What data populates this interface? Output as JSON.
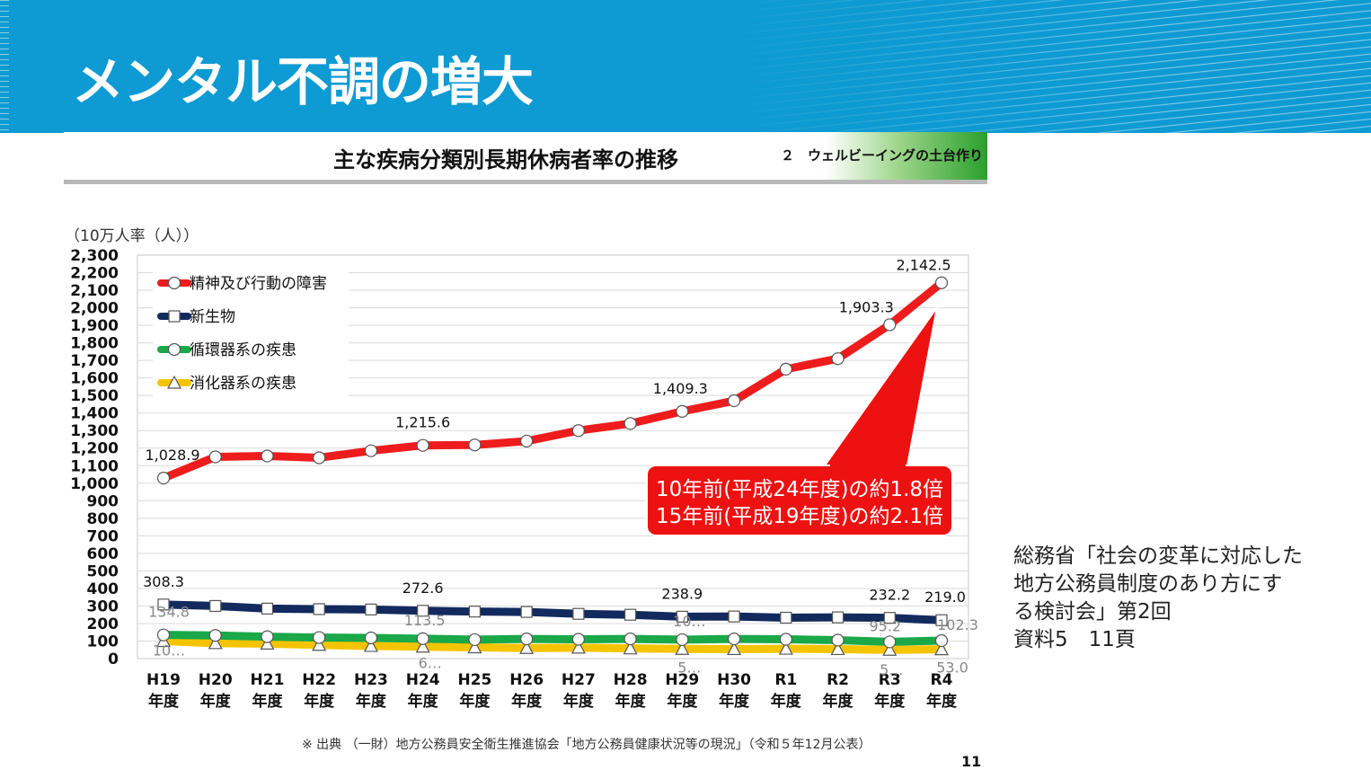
{
  "page": {
    "title": "メンタル不調の増大",
    "header_title": "主な疾病分類別長期休病者率の推移",
    "header_tag": "２　ウェルビーイングの土台作り",
    "side_note": [
      "総務省「社会の変革に対応した",
      "地方公務員制度のあり方にす",
      "る検討会」第2回",
      "資料5　11頁"
    ],
    "source": "※ 出典 （一財）地方公務員安全衛生推進協会「地方公務員健康状況等の現況」（令和５年12月公表）",
    "page_number": "11"
  },
  "chart_data": {
    "type": "line",
    "ylabel": "（10万人率（人））",
    "ylim": [
      0,
      2300
    ],
    "ytick_step": 100,
    "grid": true,
    "legend_position": "top-left",
    "categories": [
      [
        "H19",
        "年度"
      ],
      [
        "H20",
        "年度"
      ],
      [
        "H21",
        "年度"
      ],
      [
        "H22",
        "年度"
      ],
      [
        "H23",
        "年度"
      ],
      [
        "H24",
        "年度"
      ],
      [
        "H25",
        "年度"
      ],
      [
        "H26",
        "年度"
      ],
      [
        "H27",
        "年度"
      ],
      [
        "H28",
        "年度"
      ],
      [
        "H29",
        "年度"
      ],
      [
        "H30",
        "年度"
      ],
      [
        "R1",
        "年度"
      ],
      [
        "R2",
        "年度"
      ],
      [
        "R3",
        "年度"
      ],
      [
        "R4",
        "年度"
      ]
    ],
    "series": [
      {
        "name": "精神及び行動の障害",
        "color": "#ee1c1c",
        "marker": "circle",
        "values": [
          1028.9,
          1150,
          1155,
          1145,
          1185,
          1215.6,
          1218,
          1240,
          1300,
          1340,
          1409.3,
          1470,
          1650,
          1710,
          1903.3,
          2142.5
        ],
        "labels": {
          "0": "1,028.9",
          "5": "1,215.6",
          "10": "1,409.3",
          "14": "1,903.3",
          "15": "2,142.5"
        }
      },
      {
        "name": "新生物",
        "color": "#122a5e",
        "marker": "square",
        "values": [
          308.3,
          300,
          285,
          282,
          280,
          272.6,
          268,
          266,
          255,
          250,
          238.9,
          240,
          233,
          235,
          232.2,
          219.0
        ],
        "labels": {
          "0": "308.3",
          "5": "272.6",
          "10": "238.9",
          "14": "232.2",
          "15": "219.0"
        }
      },
      {
        "name": "循環器系の疾患",
        "color": "#1aa848",
        "marker": "circle",
        "values": [
          134.8,
          132,
          125,
          120,
          118,
          113.5,
          108,
          112,
          110,
          112,
          108,
          112,
          110,
          105,
          95.2,
          102.3
        ],
        "labels": {
          "0": "134.8",
          "5": "113.5",
          "10": "10…",
          "14": "95.2",
          "15": "102.3"
        }
      },
      {
        "name": "消化器系の疾患",
        "color": "#f5c400",
        "marker": "triangle",
        "values": [
          100,
          88,
          85,
          78,
          72,
          68,
          64,
          60,
          62,
          58,
          55,
          54,
          56,
          54,
          50,
          53.0
        ],
        "labels": {
          "0": "10…",
          "5": "6…",
          "10": "5…",
          "14": "5…",
          "15": "53.0"
        }
      }
    ],
    "callout": [
      "10年前(平成24年度)の約1.8倍",
      "15年前(平成19年度)の約2.1倍"
    ]
  }
}
